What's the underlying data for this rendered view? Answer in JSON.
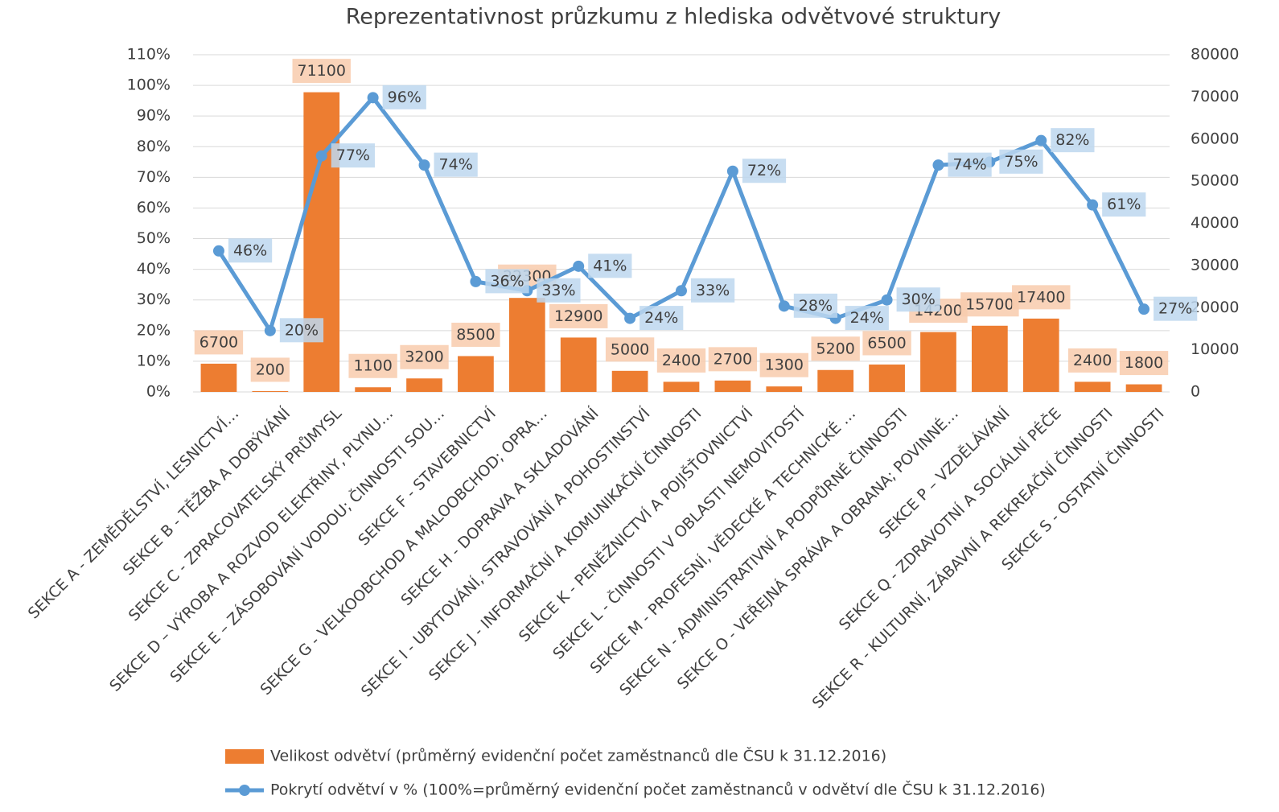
{
  "chart_data": {
    "type": "bar-line",
    "title": "Reprezentativnost průzkumu z hlediska odvětvové struktury",
    "categories": [
      "SEKCE A - ZEMĚDĚLSTVÍ, LESNICTVÍ…",
      "SEKCE B - TĚŽBA A DOBÝVÁNÍ",
      "SEKCE C - ZPRACOVATELSKÝ PRŮMYSL",
      "SEKCE D – VÝROBA A ROZVOD ELEKTŘINY, PLYNU…",
      "SEKCE E – ZÁSOBOVÁNÍ VODOU; ČINNOSTI SOU…",
      "SEKCE F - STAVEBNICTVÍ",
      "SEKCE G - VELKOOBCHOD A MALOOBCHOD; OPRA…",
      "SEKCE H - DOPRAVA A SKLADOVÁNÍ",
      "SEKCE I - UBYTOVÁNÍ, STRAVOVÁNÍ A POHOSTINSTVÍ",
      "SEKCE J - INFORMAČNÍ A KOMUNIKAČNÍ ČINNOSTI",
      "SEKCE K - PENĚŽNICTVÍ A POJIŠŤOVNICTVÍ",
      "SEKCE L - ČINNOSTI V OBLASTI NEMOVITOSTÍ",
      "SEKCE M - PROFESNÍ, VĚDECKÉ A TECHNICKÉ …",
      "SEKCE N - ADMINISTRATIVNÍ A PODPŮRNÉ ČINNOSTI",
      "SEKCE O - VEŘEJNÁ SPRÁVA A OBRANA; POVINNÉ…",
      "SEKCE P – VZDĚLÁVÁNÍ",
      "SEKCE Q - ZDRAVOTNÍ A SOCIÁLNÍ PÉČE",
      "SEKCE R - KULTURNÍ, ZÁBAVNÍ A REKREAČNÍ ČINNOSTI",
      "SEKCE S - OSTATNÍ ČINNOSTI"
    ],
    "series": [
      {
        "name": "Velikost odvětví (průměrný evidenční počet zaměstnanců dle ČSU k 31.12.2016)",
        "type": "bar",
        "axis": "y2",
        "color": "#ed7d31",
        "values": [
          6700,
          200,
          71100,
          1100,
          3200,
          8500,
          22300,
          12900,
          5000,
          2400,
          2700,
          1300,
          5200,
          6500,
          14200,
          15700,
          17400,
          2400,
          1800
        ]
      },
      {
        "name": "Pokrytí odvětví v % (100%=průměrný evidenční počet zaměstnanců v odvětví dle ČSU k 31.12.2016)",
        "type": "line",
        "axis": "y",
        "color": "#5b9bd5",
        "values": [
          46,
          20,
          77,
          96,
          74,
          36,
          33,
          41,
          24,
          33,
          72,
          28,
          24,
          30,
          74,
          75,
          82,
          61,
          27
        ],
        "value_labels": [
          "46%",
          "20%",
          "77%",
          "96%",
          "74%",
          "36%",
          "33%",
          "41%",
          "24%",
          "33%",
          "72%",
          "28%",
          "24%",
          "30%",
          "74%",
          "75%",
          "82%",
          "61%",
          "27%"
        ]
      }
    ],
    "ylim": [
      0,
      110
    ],
    "yticks": [
      {
        "value": 0,
        "label": "0%"
      },
      {
        "value": 10,
        "label": "10%"
      },
      {
        "value": 20,
        "label": "20%"
      },
      {
        "value": 30,
        "label": "30%"
      },
      {
        "value": 40,
        "label": "40%"
      },
      {
        "value": 50,
        "label": "50%"
      },
      {
        "value": 60,
        "label": "60%"
      },
      {
        "value": 70,
        "label": "70%"
      },
      {
        "value": 80,
        "label": "80%"
      },
      {
        "value": 90,
        "label": "90%"
      },
      {
        "value": 100,
        "label": "100%"
      },
      {
        "value": 110,
        "label": "110%"
      }
    ],
    "y2lim": [
      0,
      80000
    ],
    "y2ticks": [
      0,
      10000,
      20000,
      30000,
      40000,
      50000,
      60000,
      70000,
      80000
    ],
    "grid": true
  }
}
